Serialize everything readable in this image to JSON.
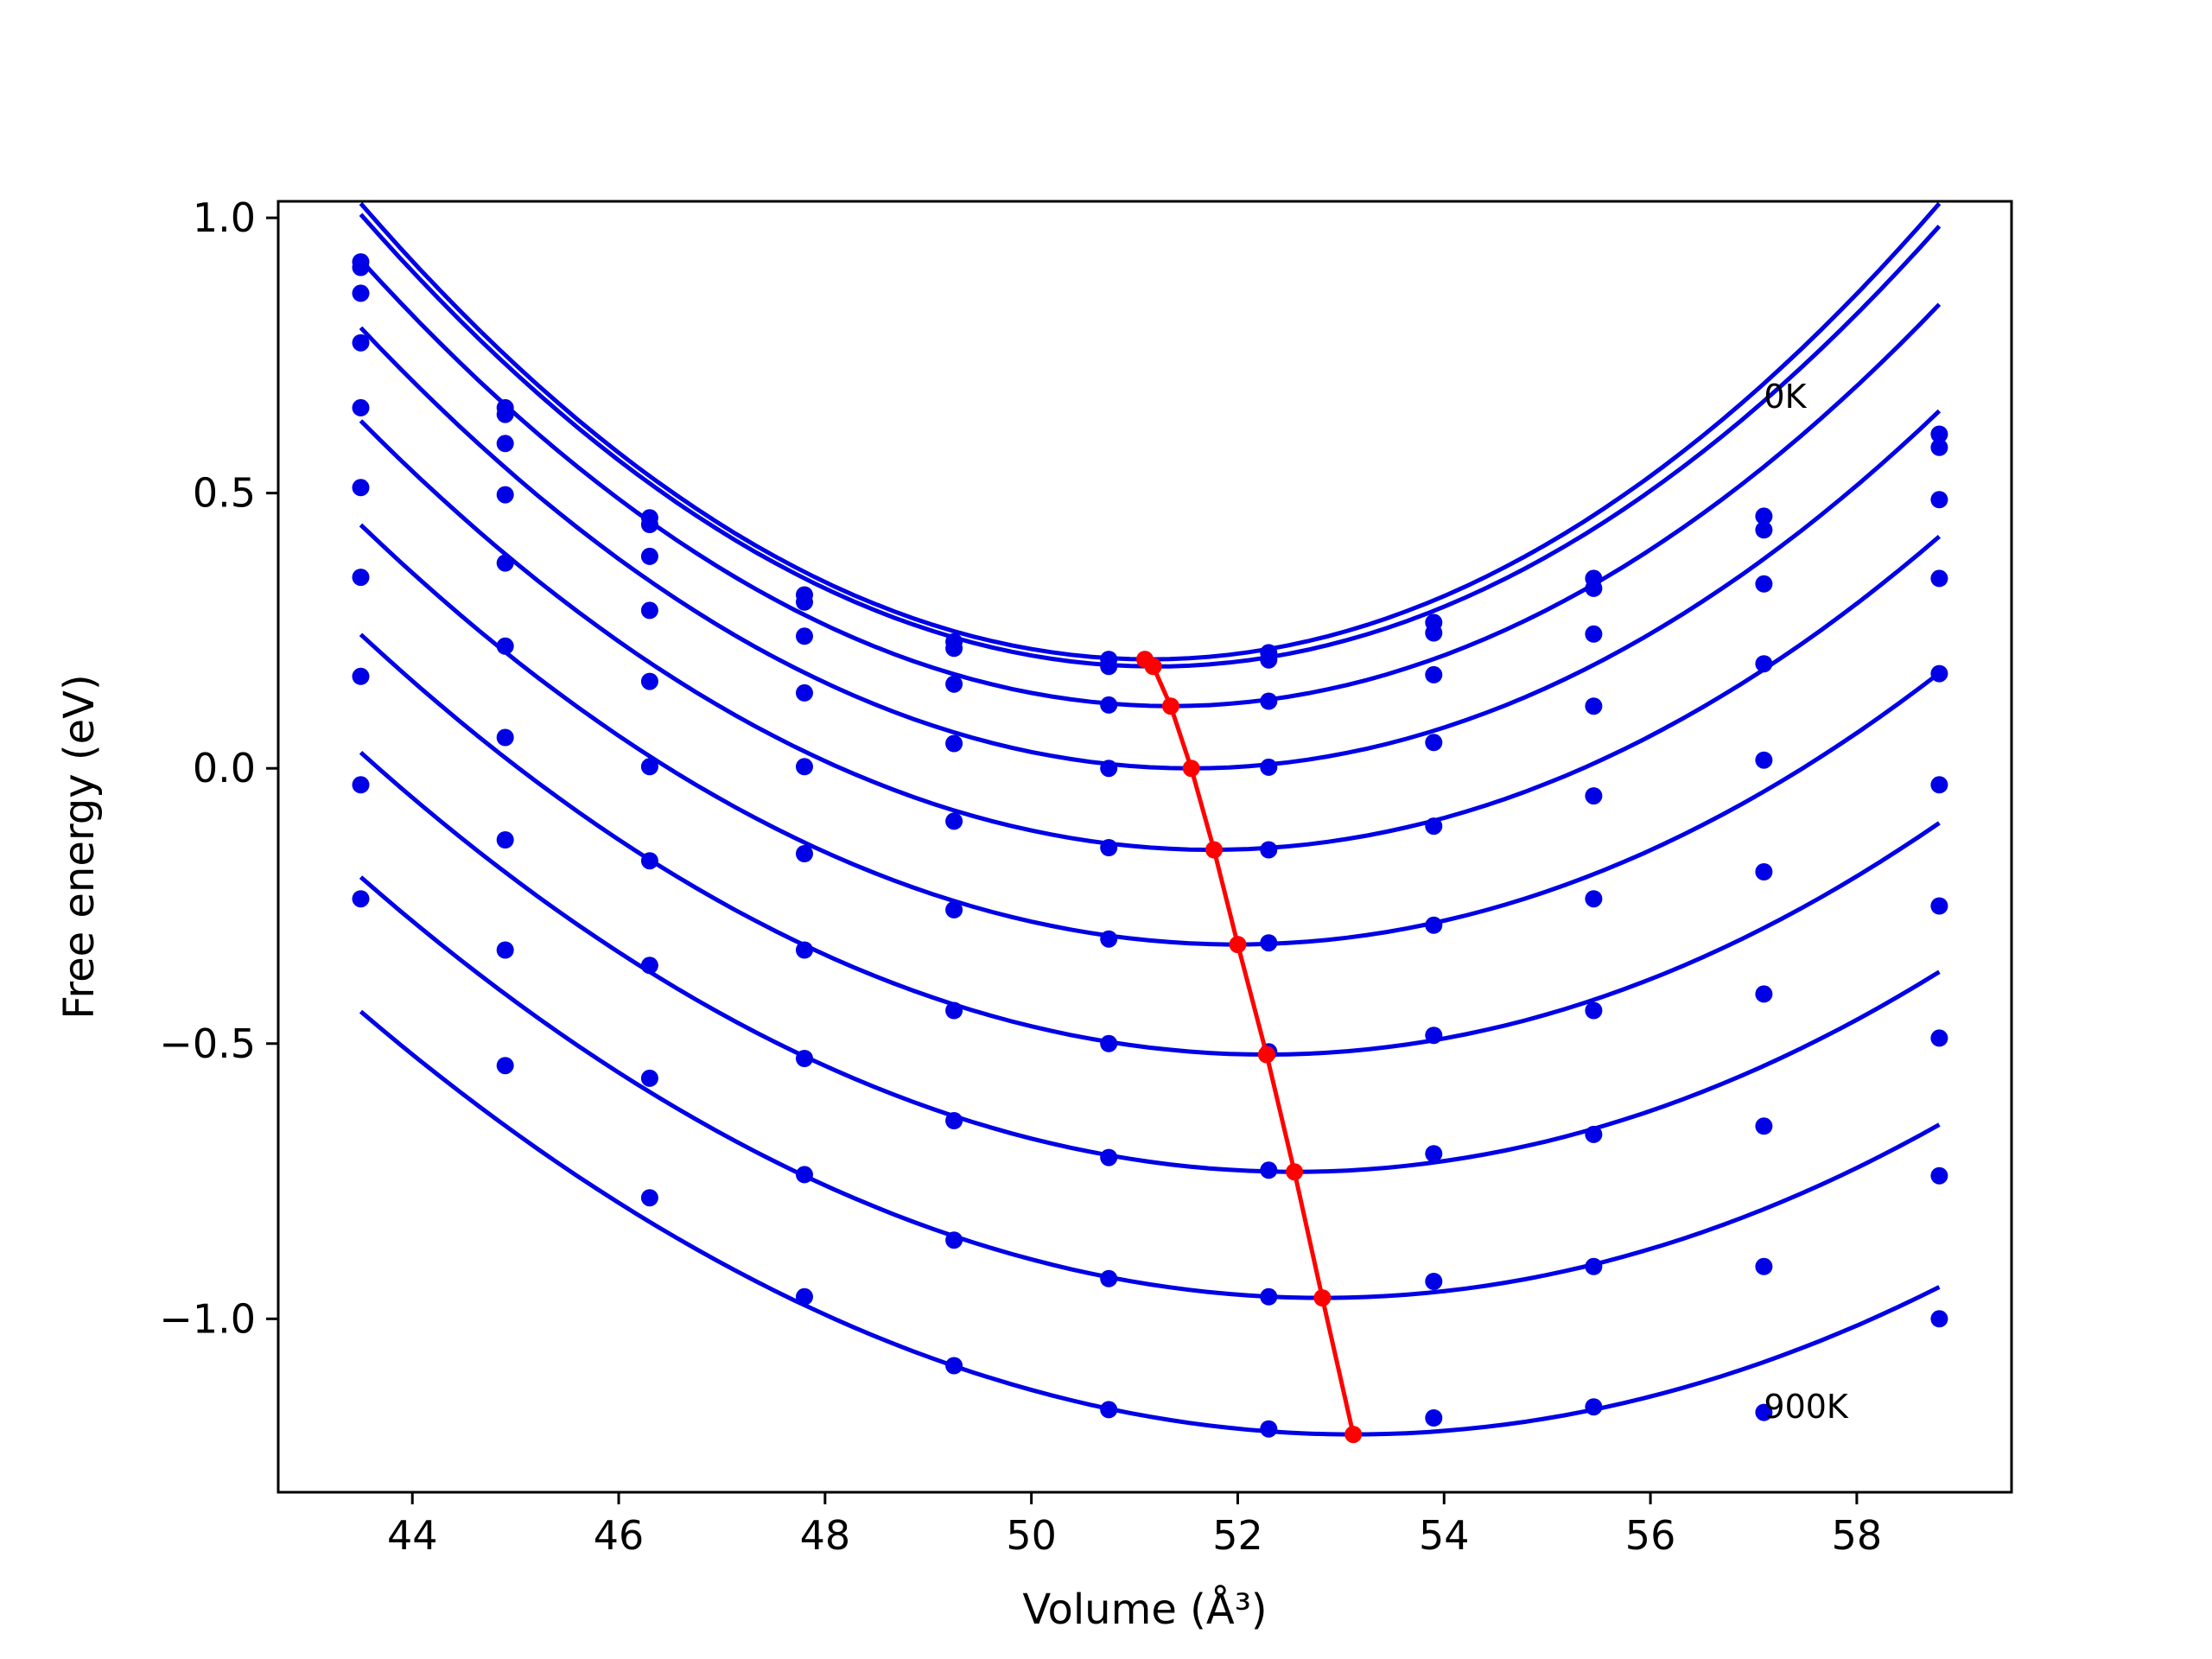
{
  "chart_data": {
    "type": "line",
    "title": "",
    "xlabel": "Volume (Å³)",
    "ylabel": "Free energy (eV)",
    "xlim": [
      42.7,
      59.5
    ],
    "ylim": [
      -1.315,
      1.03
    ],
    "x_ticks": [
      44,
      46,
      48,
      50,
      52,
      54,
      56,
      58
    ],
    "x_tick_labels": [
      "44",
      "46",
      "48",
      "50",
      "52",
      "54",
      "56",
      "58"
    ],
    "y_ticks": [
      1.0,
      0.5,
      0.0,
      -0.5,
      -1.0
    ],
    "y_tick_labels": [
      "1.0",
      "0.5",
      "0.0",
      "−0.5",
      "−1.0"
    ],
    "grid": false,
    "legend": "none",
    "colors": {
      "curves": "#0000e6",
      "minima": "#ff0000"
    },
    "annotations": [
      {
        "text": "0K",
        "x": 57.1,
        "y": 0.655
      },
      {
        "text": "900K",
        "x": 57.1,
        "y": -1.18
      }
    ],
    "volumes": [
      43.5,
      44.9,
      46.3,
      47.8,
      49.25,
      50.75,
      52.3,
      53.9,
      55.45,
      57.1,
      58.8
    ],
    "series": [
      {
        "points": [
          0.92,
          0.655,
          0.455,
          0.315,
          0.23,
          0.198,
          0.21,
          0.265,
          0.345,
          0.458,
          0.607
        ],
        "fit": {
          "a": 0.01415,
          "v0": 51.15,
          "fmin": 0.198
        }
      },
      {
        "points": [
          0.91,
          0.643,
          0.443,
          0.302,
          0.218,
          0.185,
          0.197,
          0.246,
          0.327,
          0.433,
          0.583
        ],
        "fit": {
          "a": 0.01385,
          "v0": 51.2,
          "fmin": 0.185
        }
      },
      {
        "points": [
          0.863,
          0.59,
          0.385,
          0.24,
          0.153,
          0.115,
          0.122,
          0.17,
          0.244,
          0.335,
          0.488
        ],
        "fit": {
          "a": 0.01315,
          "v0": 51.35,
          "fmin": 0.113
        }
      },
      {
        "points": [
          0.773,
          0.497,
          0.287,
          0.137,
          0.045,
          0.0,
          0.002,
          0.047,
          0.113,
          0.19,
          0.345
        ],
        "fit": {
          "a": 0.01235,
          "v0": 51.55,
          "fmin": 0.0
        }
      },
      {
        "points": [
          0.655,
          0.373,
          0.158,
          0.003,
          -0.096,
          -0.144,
          -0.148,
          -0.105,
          -0.05,
          0.015,
          0.172
        ],
        "fit": {
          "a": 0.01145,
          "v0": 51.75,
          "fmin": -0.148
        }
      },
      {
        "points": [
          0.51,
          0.222,
          0.003,
          -0.155,
          -0.257,
          -0.31,
          -0.317,
          -0.285,
          -0.237,
          -0.188,
          -0.03
        ],
        "fit": {
          "a": 0.0106,
          "v0": 51.98,
          "fmin": -0.32
        }
      },
      {
        "points": [
          0.347,
          0.056,
          -0.168,
          -0.33,
          -0.44,
          -0.5,
          -0.515,
          -0.485,
          -0.44,
          -0.41,
          -0.25
        ],
        "fit": {
          "a": 0.0099,
          "v0": 52.28,
          "fmin": -0.52
        }
      },
      {
        "points": [
          0.167,
          -0.13,
          -0.358,
          -0.527,
          -0.64,
          -0.707,
          -0.73,
          -0.7,
          -0.665,
          -0.65,
          -0.49
        ],
        "fit": {
          "a": 0.0093,
          "v0": 52.55,
          "fmin": -0.733
        }
      },
      {
        "points": [
          -0.03,
          -0.33,
          -0.563,
          -0.738,
          -0.857,
          -0.927,
          -0.96,
          -0.932,
          -0.905,
          -0.905,
          -0.74
        ],
        "fit": {
          "a": 0.0088,
          "v0": 52.82,
          "fmin": -0.962
        }
      },
      {
        "points": [
          -0.237,
          -0.54,
          -0.78,
          -0.96,
          -1.085,
          -1.165,
          -1.2,
          -1.18,
          -1.16,
          -1.17,
          -1.0
        ],
        "fit": {
          "a": 0.0083,
          "v0": 53.12,
          "fmin": -1.21
        }
      }
    ],
    "minimum_line": {
      "x": [
        51.1,
        51.18,
        51.35,
        51.55,
        51.77,
        52.0,
        52.28,
        52.55,
        52.82,
        53.12
      ],
      "y": [
        0.198,
        0.185,
        0.113,
        0.0,
        -0.148,
        -0.32,
        -0.52,
        -0.733,
        -0.962,
        -1.21
      ]
    }
  }
}
